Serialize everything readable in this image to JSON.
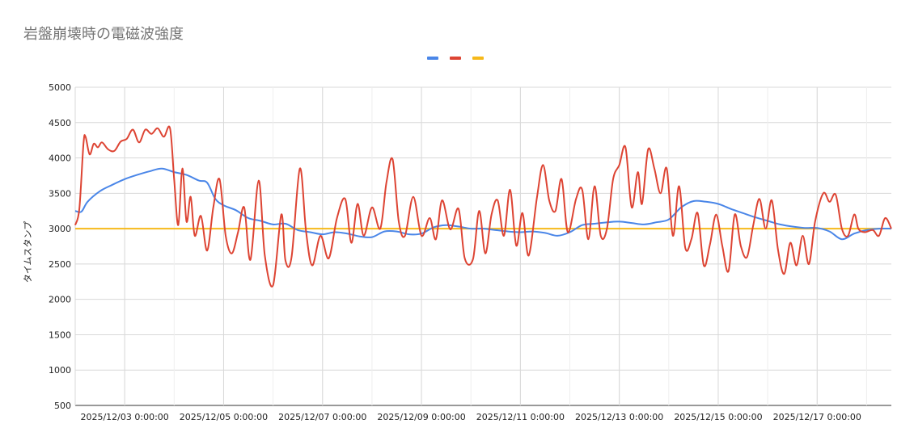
{
  "chart_data": {
    "type": "line",
    "title": "岩盤崩壊時の電磁波強度",
    "xlabel": "",
    "ylabel": "タイムスタンプ",
    "ylim": [
      500,
      5000
    ],
    "yticks": [
      500,
      1000,
      1500,
      2000,
      2500,
      3000,
      3500,
      4000,
      4500,
      5000
    ],
    "xlim": [
      "2025/12/02 00:00:00",
      "2025/12/18 12:00:00"
    ],
    "xticks": [
      "2025/12/03 0:00:00",
      "2025/12/05 0:00:00",
      "2025/12/07 0:00:00",
      "2025/12/09 0:00:00",
      "2025/12/11 0:00:00",
      "2025/12/13 0:00:00",
      "2025/12/15 0:00:00",
      "2025/12/17 0:00:00"
    ],
    "grid": true,
    "legend_position": "top",
    "colors": {
      "blue": "#4a86e8",
      "red": "#dd4433",
      "yellow": "#f6b91a"
    },
    "series": [
      {
        "name": "",
        "color": "#4a86e8",
        "points": [
          [
            "2025/12/02 00:00:00",
            3250
          ],
          [
            "2025/12/02 03:00:00",
            3240
          ],
          [
            "2025/12/02 06:00:00",
            3380
          ],
          [
            "2025/12/02 12:00:00",
            3530
          ],
          [
            "2025/12/02 18:00:00",
            3620
          ],
          [
            "2025/12/03 00:00:00",
            3700
          ],
          [
            "2025/12/03 06:00:00",
            3760
          ],
          [
            "2025/12/03 12:00:00",
            3810
          ],
          [
            "2025/12/03 18:00:00",
            3850
          ],
          [
            "2025/12/04 00:00:00",
            3800
          ],
          [
            "2025/12/04 06:00:00",
            3760
          ],
          [
            "2025/12/04 12:00:00",
            3680
          ],
          [
            "2025/12/04 16:00:00",
            3650
          ],
          [
            "2025/12/04 20:00:00",
            3420
          ],
          [
            "2025/12/05 00:00:00",
            3330
          ],
          [
            "2025/12/05 06:00:00",
            3260
          ],
          [
            "2025/12/05 12:00:00",
            3150
          ],
          [
            "2025/12/05 18:00:00",
            3110
          ],
          [
            "2025/12/06 00:00:00",
            3060
          ],
          [
            "2025/12/06 06:00:00",
            3070
          ],
          [
            "2025/12/06 12:00:00",
            2980
          ],
          [
            "2025/12/06 18:00:00",
            2950
          ],
          [
            "2025/12/07 00:00:00",
            2920
          ],
          [
            "2025/12/07 06:00:00",
            2950
          ],
          [
            "2025/12/07 12:00:00",
            2930
          ],
          [
            "2025/12/07 18:00:00",
            2890
          ],
          [
            "2025/12/08 00:00:00",
            2880
          ],
          [
            "2025/12/08 06:00:00",
            2960
          ],
          [
            "2025/12/08 12:00:00",
            2960
          ],
          [
            "2025/12/08 18:00:00",
            2920
          ],
          [
            "2025/12/09 00:00:00",
            2930
          ],
          [
            "2025/12/09 06:00:00",
            3020
          ],
          [
            "2025/12/09 12:00:00",
            3050
          ],
          [
            "2025/12/09 18:00:00",
            3030
          ],
          [
            "2025/12/10 00:00:00",
            3000
          ],
          [
            "2025/12/10 06:00:00",
            3000
          ],
          [
            "2025/12/10 12:00:00",
            2980
          ],
          [
            "2025/12/10 18:00:00",
            2960
          ],
          [
            "2025/12/11 00:00:00",
            2950
          ],
          [
            "2025/12/11 06:00:00",
            2960
          ],
          [
            "2025/12/11 12:00:00",
            2940
          ],
          [
            "2025/12/11 18:00:00",
            2900
          ],
          [
            "2025/12/12 00:00:00",
            2950
          ],
          [
            "2025/12/12 06:00:00",
            3050
          ],
          [
            "2025/12/12 12:00:00",
            3070
          ],
          [
            "2025/12/12 18:00:00",
            3090
          ],
          [
            "2025/12/13 00:00:00",
            3100
          ],
          [
            "2025/12/13 06:00:00",
            3080
          ],
          [
            "2025/12/13 12:00:00",
            3060
          ],
          [
            "2025/12/13 18:00:00",
            3090
          ],
          [
            "2025/12/14 00:00:00",
            3130
          ],
          [
            "2025/12/14 06:00:00",
            3300
          ],
          [
            "2025/12/14 12:00:00",
            3390
          ],
          [
            "2025/12/14 18:00:00",
            3380
          ],
          [
            "2025/12/15 00:00:00",
            3350
          ],
          [
            "2025/12/15 06:00:00",
            3280
          ],
          [
            "2025/12/15 12:00:00",
            3220
          ],
          [
            "2025/12/15 18:00:00",
            3160
          ],
          [
            "2025/12/16 00:00:00",
            3110
          ],
          [
            "2025/12/16 06:00:00",
            3060
          ],
          [
            "2025/12/16 12:00:00",
            3030
          ],
          [
            "2025/12/16 18:00:00",
            3010
          ],
          [
            "2025/12/17 00:00:00",
            3010
          ],
          [
            "2025/12/17 06:00:00",
            2960
          ],
          [
            "2025/12/17 12:00:00",
            2850
          ],
          [
            "2025/12/17 18:00:00",
            2930
          ],
          [
            "2025/12/18 00:00:00",
            2980
          ],
          [
            "2025/12/18 06:00:00",
            3000
          ],
          [
            "2025/12/18 12:00:00",
            3000
          ]
        ]
      },
      {
        "name": "",
        "color": "#dd4433",
        "points": [
          [
            "2025/12/02 00:00:00",
            3050
          ],
          [
            "2025/12/02 02:00:00",
            3280
          ],
          [
            "2025/12/02 04:00:00",
            4200
          ],
          [
            "2025/12/02 05:00:00",
            4300
          ],
          [
            "2025/12/02 07:00:00",
            4050
          ],
          [
            "2025/12/02 09:00:00",
            4200
          ],
          [
            "2025/12/02 11:00:00",
            4150
          ],
          [
            "2025/12/02 13:00:00",
            4220
          ],
          [
            "2025/12/02 16:00:00",
            4120
          ],
          [
            "2025/12/02 19:00:00",
            4100
          ],
          [
            "2025/12/02 22:00:00",
            4230
          ],
          [
            "2025/12/03 01:00:00",
            4270
          ],
          [
            "2025/12/03 04:00:00",
            4400
          ],
          [
            "2025/12/03 07:00:00",
            4220
          ],
          [
            "2025/12/03 10:00:00",
            4400
          ],
          [
            "2025/12/03 13:00:00",
            4340
          ],
          [
            "2025/12/03 16:00:00",
            4420
          ],
          [
            "2025/12/03 19:00:00",
            4300
          ],
          [
            "2025/12/03 22:00:00",
            4420
          ],
          [
            "2025/12/04 00:00:00",
            3700
          ],
          [
            "2025/12/04 02:00:00",
            3050
          ],
          [
            "2025/12/04 04:00:00",
            3850
          ],
          [
            "2025/12/04 06:00:00",
            3100
          ],
          [
            "2025/12/04 08:00:00",
            3450
          ],
          [
            "2025/12/04 10:00:00",
            2900
          ],
          [
            "2025/12/04 13:00:00",
            3180
          ],
          [
            "2025/12/04 16:00:00",
            2690
          ],
          [
            "2025/12/04 19:00:00",
            3300
          ],
          [
            "2025/12/04 22:00:00",
            3700
          ],
          [
            "2025/12/05 01:00:00",
            2900
          ],
          [
            "2025/12/05 04:00:00",
            2650
          ],
          [
            "2025/12/05 07:00:00",
            2950
          ],
          [
            "2025/12/05 10:00:00",
            3300
          ],
          [
            "2025/12/05 13:00:00",
            2560
          ],
          [
            "2025/12/05 17:00:00",
            3680
          ],
          [
            "2025/12/05 20:00:00",
            2620
          ],
          [
            "2025/12/06 00:00:00",
            2200
          ],
          [
            "2025/12/06 04:00:00",
            3200
          ],
          [
            "2025/12/06 06:00:00",
            2550
          ],
          [
            "2025/12/06 09:00:00",
            2600
          ],
          [
            "2025/12/06 13:00:00",
            3850
          ],
          [
            "2025/12/06 16:00:00",
            2960
          ],
          [
            "2025/12/06 19:00:00",
            2480
          ],
          [
            "2025/12/06 23:00:00",
            2900
          ],
          [
            "2025/12/07 03:00:00",
            2580
          ],
          [
            "2025/12/07 07:00:00",
            3150
          ],
          [
            "2025/12/07 11:00:00",
            3420
          ],
          [
            "2025/12/07 14:00:00",
            2800
          ],
          [
            "2025/12/07 17:00:00",
            3350
          ],
          [
            "2025/12/07 20:00:00",
            2900
          ],
          [
            "2025/12/08 00:00:00",
            3300
          ],
          [
            "2025/12/08 04:00:00",
            3000
          ],
          [
            "2025/12/08 07:00:00",
            3650
          ],
          [
            "2025/12/08 10:00:00",
            3980
          ],
          [
            "2025/12/08 13:00:00",
            3100
          ],
          [
            "2025/12/08 16:00:00",
            2900
          ],
          [
            "2025/12/08 20:00:00",
            3450
          ],
          [
            "2025/12/09 00:00:00",
            2900
          ],
          [
            "2025/12/09 04:00:00",
            3150
          ],
          [
            "2025/12/09 07:00:00",
            2850
          ],
          [
            "2025/12/09 10:00:00",
            3400
          ],
          [
            "2025/12/09 14:00:00",
            2990
          ],
          [
            "2025/12/09 18:00:00",
            3280
          ],
          [
            "2025/12/09 21:00:00",
            2580
          ],
          [
            "2025/12/10 01:00:00",
            2570
          ],
          [
            "2025/12/10 04:00:00",
            3250
          ],
          [
            "2025/12/10 07:00:00",
            2650
          ],
          [
            "2025/12/10 10:00:00",
            3200
          ],
          [
            "2025/12/10 13:00:00",
            3400
          ],
          [
            "2025/12/10 16:00:00",
            2900
          ],
          [
            "2025/12/10 19:00:00",
            3550
          ],
          [
            "2025/12/10 22:00:00",
            2760
          ],
          [
            "2025/12/11 01:00:00",
            3220
          ],
          [
            "2025/12/11 04:00:00",
            2620
          ],
          [
            "2025/12/11 08:00:00",
            3430
          ],
          [
            "2025/12/11 11:00:00",
            3900
          ],
          [
            "2025/12/11 14:00:00",
            3400
          ],
          [
            "2025/12/11 17:00:00",
            3250
          ],
          [
            "2025/12/11 20:00:00",
            3700
          ],
          [
            "2025/12/11 23:00:00",
            2950
          ],
          [
            "2025/12/12 03:00:00",
            3420
          ],
          [
            "2025/12/12 06:00:00",
            3550
          ],
          [
            "2025/12/12 09:00:00",
            2850
          ],
          [
            "2025/12/12 12:00:00",
            3600
          ],
          [
            "2025/12/12 15:00:00",
            2900
          ],
          [
            "2025/12/12 18:00:00",
            3000
          ],
          [
            "2025/12/12 21:00:00",
            3700
          ],
          [
            "2025/12/13 00:00:00",
            3900
          ],
          [
            "2025/12/13 03:00:00",
            4150
          ],
          [
            "2025/12/13 06:00:00",
            3300
          ],
          [
            "2025/12/13 09:00:00",
            3800
          ],
          [
            "2025/12/13 11:00:00",
            3350
          ],
          [
            "2025/12/13 14:00:00",
            4120
          ],
          [
            "2025/12/13 17:00:00",
            3850
          ],
          [
            "2025/12/13 20:00:00",
            3500
          ],
          [
            "2025/12/13 23:00:00",
            3850
          ],
          [
            "2025/12/14 02:00:00",
            2900
          ],
          [
            "2025/12/14 05:00:00",
            3600
          ],
          [
            "2025/12/14 08:00:00",
            2730
          ],
          [
            "2025/12/14 11:00:00",
            2850
          ],
          [
            "2025/12/14 14:00:00",
            3220
          ],
          [
            "2025/12/14 17:00:00",
            2480
          ],
          [
            "2025/12/14 20:00:00",
            2780
          ],
          [
            "2025/12/14 23:00:00",
            3200
          ],
          [
            "2025/12/15 02:00:00",
            2750
          ],
          [
            "2025/12/15 05:00:00",
            2400
          ],
          [
            "2025/12/15 08:00:00",
            3200
          ],
          [
            "2025/12/15 11:00:00",
            2750
          ],
          [
            "2025/12/15 14:00:00",
            2600
          ],
          [
            "2025/12/15 17:00:00",
            3050
          ],
          [
            "2025/12/15 20:00:00",
            3420
          ],
          [
            "2025/12/15 23:00:00",
            3000
          ],
          [
            "2025/12/16 02:00:00",
            3400
          ],
          [
            "2025/12/16 05:00:00",
            2700
          ],
          [
            "2025/12/16 08:00:00",
            2360
          ],
          [
            "2025/12/16 11:00:00",
            2800
          ],
          [
            "2025/12/16 14:00:00",
            2480
          ],
          [
            "2025/12/16 17:00:00",
            2900
          ],
          [
            "2025/12/16 20:00:00",
            2500
          ],
          [
            "2025/12/16 23:00:00",
            3100
          ],
          [
            "2025/12/17 03:00:00",
            3500
          ],
          [
            "2025/12/17 06:00:00",
            3380
          ],
          [
            "2025/12/17 09:00:00",
            3480
          ],
          [
            "2025/12/17 12:00:00",
            3000
          ],
          [
            "2025/12/17 15:00:00",
            2900
          ],
          [
            "2025/12/17 18:00:00",
            3200
          ],
          [
            "2025/12/17 20:00:00",
            3000
          ],
          [
            "2025/12/17 23:00:00",
            2950
          ],
          [
            "2025/12/18 03:00:00",
            2980
          ],
          [
            "2025/12/18 06:00:00",
            2900
          ],
          [
            "2025/12/18 09:00:00",
            3150
          ],
          [
            "2025/12/18 12:00:00",
            3000
          ]
        ]
      },
      {
        "name": "",
        "color": "#f6b91a",
        "points": [
          [
            "2025/12/02 00:00:00",
            3000
          ],
          [
            "2025/12/18 12:00:00",
            3000
          ]
        ]
      }
    ]
  }
}
